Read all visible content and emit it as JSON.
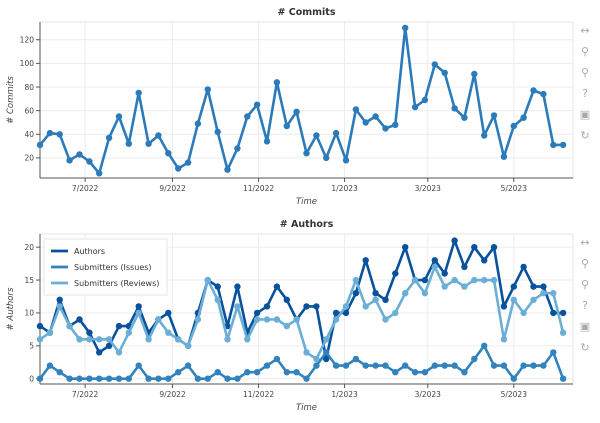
{
  "colors": {
    "authors": "#08519c",
    "issues": "#3182bd",
    "reviews": "#6baed6",
    "commits": "#2b7bba",
    "grid": "#ececec"
  },
  "toolbar": [
    {
      "name": "pan-tool",
      "icon": "pan-icon",
      "glyph": "↔"
    },
    {
      "name": "zoom-x-tool",
      "icon": "wheel-zoom-icon",
      "glyph": "⚲"
    },
    {
      "name": "zoom-y-tool",
      "icon": "wheel-zoom-icon",
      "glyph": "⚲"
    },
    {
      "name": "hover-tool",
      "icon": "help-icon",
      "glyph": "?"
    },
    {
      "name": "save-tool",
      "icon": "save-icon",
      "glyph": "▣"
    },
    {
      "name": "reset-tool",
      "icon": "reset-icon",
      "glyph": "↻"
    }
  ],
  "x_ticks": [
    "7/2022",
    "9/2022",
    "11/2022",
    "1/2023",
    "3/2023",
    "5/2023"
  ],
  "chart_data": [
    {
      "type": "line",
      "title": "# Commits",
      "xlabel": "Time",
      "ylabel": "# Commits",
      "x_range": [
        "2022-05-30",
        "2023-06-12"
      ],
      "ylim": [
        3,
        135
      ],
      "yticks": [
        20,
        40,
        60,
        80,
        100,
        120
      ],
      "grid": true,
      "series": [
        {
          "color_key": "commits",
          "x": [
            "2022-05-30",
            "2022-06-06",
            "2022-06-13",
            "2022-06-20",
            "2022-06-27",
            "2022-07-04",
            "2022-07-11",
            "2022-07-18",
            "2022-07-25",
            "2022-08-01",
            "2022-08-08",
            "2022-08-15",
            "2022-08-22",
            "2022-08-29",
            "2022-09-05",
            "2022-09-12",
            "2022-09-19",
            "2022-09-26",
            "2022-10-03",
            "2022-10-10",
            "2022-10-17",
            "2022-10-24",
            "2022-10-31",
            "2022-11-07",
            "2022-11-14",
            "2022-11-21",
            "2022-11-28",
            "2022-12-05",
            "2022-12-12",
            "2022-12-19",
            "2022-12-26",
            "2023-01-02",
            "2023-01-09",
            "2023-01-16",
            "2023-01-23",
            "2023-01-30",
            "2023-02-06",
            "2023-02-13",
            "2023-02-20",
            "2023-02-27",
            "2023-03-06",
            "2023-03-13",
            "2023-03-20",
            "2023-03-27",
            "2023-04-03",
            "2023-04-10",
            "2023-04-17",
            "2023-04-24",
            "2023-05-01",
            "2023-05-08",
            "2023-05-15",
            "2023-05-22",
            "2023-05-29",
            "2023-06-05"
          ],
          "values": [
            31,
            41,
            40,
            18,
            23,
            17,
            7,
            37,
            55,
            32,
            75,
            32,
            39,
            24,
            11,
            16,
            49,
            78,
            42,
            10,
            28,
            55,
            65,
            34,
            84,
            47,
            59,
            24,
            39,
            20,
            41,
            18,
            61,
            50,
            55,
            45,
            48,
            130,
            63,
            69,
            99,
            92,
            62,
            54,
            91,
            39,
            56,
            21,
            47,
            54,
            77,
            74,
            31,
            31
          ]
        }
      ]
    },
    {
      "type": "line",
      "title": "# Authors",
      "xlabel": "Time",
      "ylabel": "# Authors",
      "x_range": [
        "2022-05-30",
        "2023-06-12"
      ],
      "ylim": [
        -0.8,
        22
      ],
      "yticks": [
        0,
        5,
        10,
        15,
        20
      ],
      "grid": true,
      "legend_position": "top-left",
      "series": [
        {
          "name": "Authors",
          "color_key": "authors",
          "x": [
            "2022-05-30",
            "2022-06-06",
            "2022-06-13",
            "2022-06-20",
            "2022-06-27",
            "2022-07-04",
            "2022-07-11",
            "2022-07-18",
            "2022-07-25",
            "2022-08-01",
            "2022-08-08",
            "2022-08-15",
            "2022-08-22",
            "2022-08-29",
            "2022-09-05",
            "2022-09-12",
            "2022-09-19",
            "2022-09-26",
            "2022-10-03",
            "2022-10-10",
            "2022-10-17",
            "2022-10-24",
            "2022-10-31",
            "2022-11-07",
            "2022-11-14",
            "2022-11-21",
            "2022-11-28",
            "2022-12-05",
            "2022-12-12",
            "2022-12-19",
            "2022-12-26",
            "2023-01-02",
            "2023-01-09",
            "2023-01-16",
            "2023-01-23",
            "2023-01-30",
            "2023-02-06",
            "2023-02-13",
            "2023-02-20",
            "2023-02-27",
            "2023-03-06",
            "2023-03-13",
            "2023-03-20",
            "2023-03-27",
            "2023-04-03",
            "2023-04-10",
            "2023-04-17",
            "2023-04-24",
            "2023-05-01",
            "2023-05-08",
            "2023-05-15",
            "2023-05-22",
            "2023-05-29",
            "2023-06-05"
          ],
          "values": [
            8,
            7,
            12,
            8,
            9,
            7,
            4,
            5,
            8,
            8,
            11,
            7,
            9,
            10,
            6,
            5,
            10,
            15,
            14,
            8,
            14,
            7,
            10,
            11,
            14,
            12,
            9,
            11,
            11,
            3,
            10,
            10,
            13,
            18,
            13,
            12,
            16,
            20,
            15,
            15,
            18,
            16,
            21,
            17,
            20,
            18,
            20,
            11,
            14,
            17,
            14,
            14,
            10,
            10
          ]
        },
        {
          "name": "Submitters (Issues)",
          "color_key": "issues",
          "x": [
            "2022-05-30",
            "2022-06-06",
            "2022-06-13",
            "2022-06-20",
            "2022-06-27",
            "2022-07-04",
            "2022-07-11",
            "2022-07-18",
            "2022-07-25",
            "2022-08-01",
            "2022-08-08",
            "2022-08-15",
            "2022-08-22",
            "2022-08-29",
            "2022-09-05",
            "2022-09-12",
            "2022-09-19",
            "2022-09-26",
            "2022-10-03",
            "2022-10-10",
            "2022-10-17",
            "2022-10-24",
            "2022-10-31",
            "2022-11-07",
            "2022-11-14",
            "2022-11-21",
            "2022-11-28",
            "2022-12-05",
            "2022-12-12",
            "2022-12-19",
            "2022-12-26",
            "2023-01-02",
            "2023-01-09",
            "2023-01-16",
            "2023-01-23",
            "2023-01-30",
            "2023-02-06",
            "2023-02-13",
            "2023-02-20",
            "2023-02-27",
            "2023-03-06",
            "2023-03-13",
            "2023-03-20",
            "2023-03-27",
            "2023-04-03",
            "2023-04-10",
            "2023-04-17",
            "2023-04-24",
            "2023-05-01",
            "2023-05-08",
            "2023-05-15",
            "2023-05-22",
            "2023-05-29",
            "2023-06-05"
          ],
          "values": [
            0,
            2,
            1,
            0,
            0,
            0,
            0,
            0,
            0,
            0,
            2,
            0,
            0,
            0,
            1,
            2,
            0,
            0,
            1,
            0,
            0,
            1,
            1,
            2,
            3,
            1,
            1,
            0,
            2,
            4,
            2,
            2,
            3,
            2,
            2,
            2,
            1,
            2,
            1,
            1,
            2,
            2,
            2,
            1,
            3,
            5,
            2,
            2,
            0,
            2,
            2,
            2,
            4,
            0
          ]
        },
        {
          "name": "Submitters (Reviews)",
          "color_key": "reviews",
          "x": [
            "2022-05-30",
            "2022-06-06",
            "2022-06-13",
            "2022-06-20",
            "2022-06-27",
            "2022-07-04",
            "2022-07-11",
            "2022-07-18",
            "2022-07-25",
            "2022-08-01",
            "2022-08-08",
            "2022-08-15",
            "2022-08-22",
            "2022-08-29",
            "2022-09-05",
            "2022-09-12",
            "2022-09-19",
            "2022-09-26",
            "2022-10-03",
            "2022-10-10",
            "2022-10-17",
            "2022-10-24",
            "2022-10-31",
            "2022-11-07",
            "2022-11-14",
            "2022-11-21",
            "2022-11-28",
            "2022-12-05",
            "2022-12-12",
            "2022-12-19",
            "2022-12-26",
            "2023-01-02",
            "2023-01-09",
            "2023-01-16",
            "2023-01-23",
            "2023-01-30",
            "2023-02-06",
            "2023-02-13",
            "2023-02-20",
            "2023-02-27",
            "2023-03-06",
            "2023-03-13",
            "2023-03-20",
            "2023-03-27",
            "2023-04-03",
            "2023-04-10",
            "2023-04-17",
            "2023-04-24",
            "2023-05-01",
            "2023-05-08",
            "2023-05-15",
            "2023-05-22",
            "2023-05-29",
            "2023-06-05"
          ],
          "values": [
            6,
            7,
            11,
            8,
            6,
            6,
            6,
            6,
            4,
            7,
            10,
            6,
            9,
            7,
            6,
            5,
            9,
            15,
            12,
            6,
            11,
            6,
            9,
            9,
            9,
            8,
            9,
            4,
            3,
            6,
            9,
            11,
            15,
            11,
            12,
            9,
            10,
            13,
            15,
            13,
            17,
            14,
            15,
            14,
            15,
            15,
            15,
            6,
            12,
            10,
            12,
            13,
            13,
            7
          ]
        }
      ]
    }
  ]
}
